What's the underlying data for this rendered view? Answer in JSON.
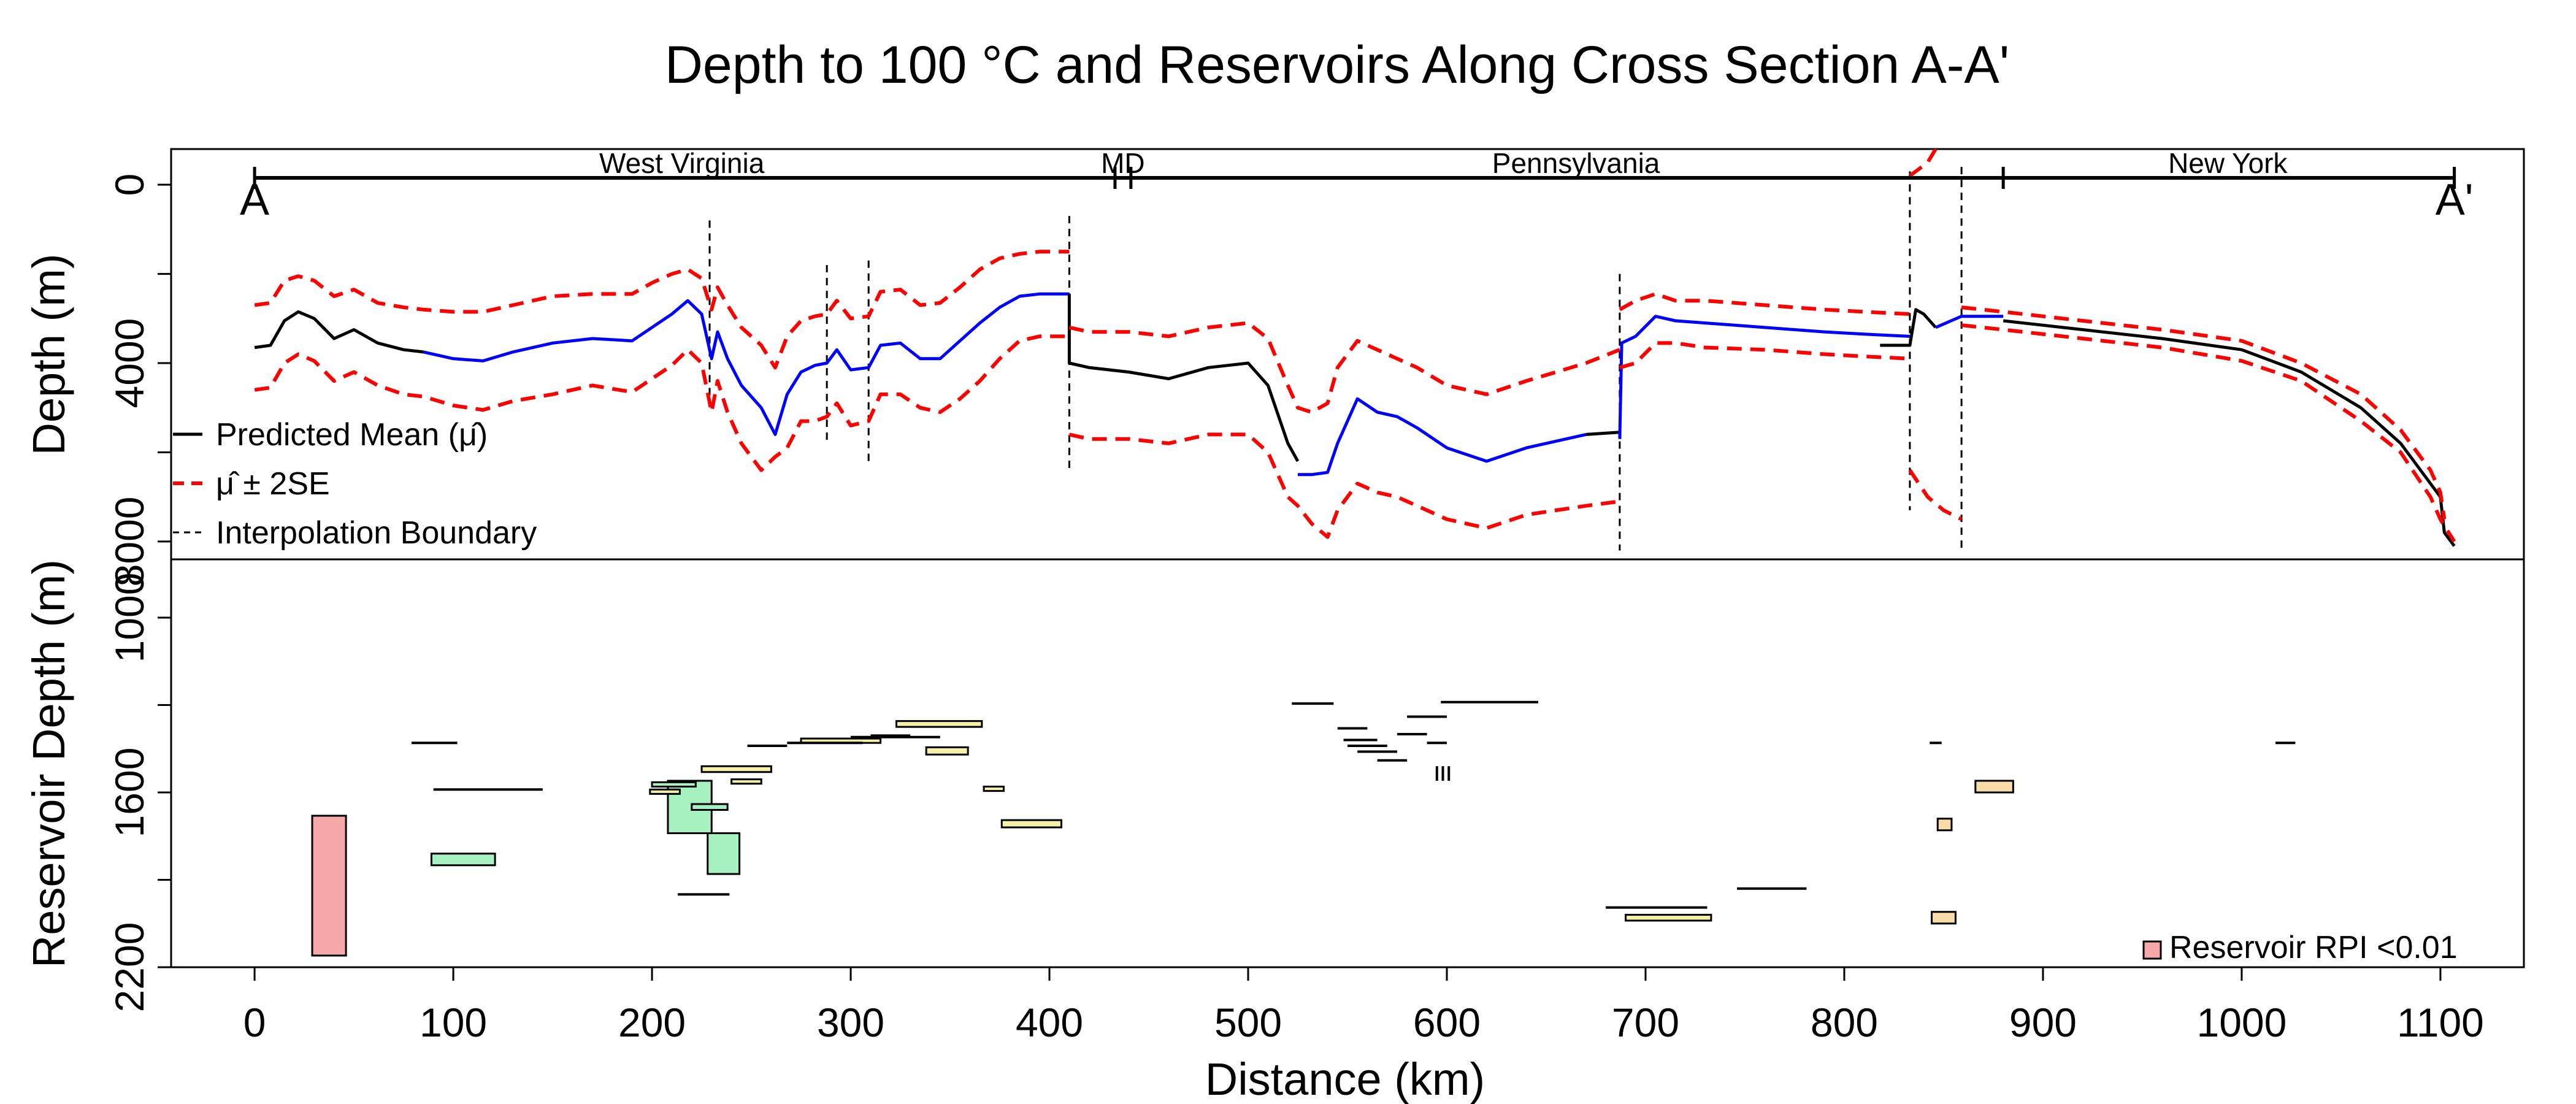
{
  "title": "Depth to 100 °C and Reservoirs Along Cross Section A-A'",
  "xlabel": "Distance (km)",
  "colors": {
    "mean_black": "#000000",
    "mean_blue": "#0000ff",
    "se_red": "#ff0000",
    "rpi_lt_001": "#f7a8a8",
    "rpi_green": "#a7f0c0",
    "rpi_yellow": "#f4f0a8",
    "rpi_orange": "#f8dca8"
  },
  "top_panel": {
    "ylabel": "Depth (m)",
    "y_ticks": [
      "0",
      "4000",
      "8000"
    ],
    "states": [
      "West Virginia",
      "MD",
      "Pennsylvania",
      "New York"
    ],
    "endpoints": [
      "A",
      "A'"
    ],
    "legend": [
      "Predicted Mean (μ̂)",
      "μ̂ ± 2SE",
      "Interpolation Boundary"
    ]
  },
  "bottom_panel": {
    "ylabel": "Reservoir Depth (m)",
    "y_ticks": [
      "1000",
      "1600",
      "2200"
    ],
    "legend": [
      "Reservoir RPI <0.01"
    ]
  },
  "x_ticks": [
    "0",
    "100",
    "200",
    "300",
    "400",
    "500",
    "600",
    "700",
    "800",
    "900",
    "1000",
    "1100"
  ],
  "chart_data": [
    {
      "type": "line",
      "title": "Depth to 100 °C and Reservoirs Along Cross Section A-A'",
      "xlabel": "Distance (km)",
      "ylabel": "Depth (m)",
      "xlim": [
        -42,
        1142
      ],
      "ylim": [
        8400,
        -800
      ],
      "y_reversed": true,
      "states": [
        {
          "name": "West Virginia",
          "x_start": 0,
          "x_end": 437
        },
        {
          "name": "MD",
          "x_start": 433,
          "x_end": 441
        },
        {
          "name": "Pennsylvania",
          "x_start": 437,
          "x_end": 880
        },
        {
          "name": "New York",
          "x_start": 880,
          "x_end": 1107
        }
      ],
      "interpolation_boundaries": [
        {
          "x": 229,
          "y1": 800,
          "y2": 4800
        },
        {
          "x": 288,
          "y1": 1800,
          "y2": 5800
        },
        {
          "x": 309,
          "y1": 1700,
          "y2": 6300
        },
        {
          "x": 410,
          "y1": 700,
          "y2": 6400
        },
        {
          "x": 687,
          "y1": 2000,
          "y2": 8200
        },
        {
          "x": 833,
          "y1": -300,
          "y2": 7300
        },
        {
          "x": 859,
          "y1": -400,
          "y2": 8200
        }
      ],
      "series": [
        {
          "name": "Predicted Mean (μ̂)",
          "color": "#000000",
          "x": [
            0,
            8,
            15,
            22,
            30,
            40,
            50,
            62,
            75,
            85
          ],
          "y": [
            3650,
            3600,
            3050,
            2850,
            3000,
            3450,
            3250,
            3550,
            3700,
            3750
          ]
        },
        {
          "name": "Predicted Mean (μ̂)",
          "color": "#0000ff",
          "x": [
            85,
            100,
            115,
            130,
            150,
            170,
            190,
            200,
            210,
            218,
            225,
            230,
            233,
            238,
            245,
            255,
            262,
            268,
            275,
            282,
            288,
            293,
            300,
            309,
            315,
            325,
            335,
            345,
            355,
            365,
            375,
            385,
            395,
            410
          ],
          "y": [
            3750,
            3900,
            3950,
            3750,
            3550,
            3450,
            3500,
            3200,
            2900,
            2600,
            2900,
            3900,
            3300,
            3900,
            4500,
            5000,
            5600,
            4700,
            4200,
            4050,
            4000,
            3700,
            4150,
            4100,
            3600,
            3550,
            3900,
            3900,
            3500,
            3100,
            2750,
            2500,
            2450,
            2450
          ]
        },
        {
          "name": "Predicted Mean (μ̂)",
          "color": "#000000",
          "x": [
            410,
            410,
            420,
            440,
            460,
            480,
            500,
            510,
            520,
            525
          ],
          "y": [
            2450,
            4000,
            4100,
            4200,
            4350,
            4100,
            4000,
            4500,
            5800,
            6200
          ]
        },
        {
          "name": "Predicted Mean (μ̂)",
          "color": "#0000ff",
          "x": [
            525,
            532,
            540,
            545,
            555,
            565,
            575,
            585,
            600,
            620,
            640,
            655,
            670
          ],
          "y": [
            6500,
            6500,
            6450,
            5800,
            4800,
            5100,
            5200,
            5450,
            5900,
            6200,
            5900,
            5750,
            5600
          ]
        },
        {
          "name": "Predicted Mean (μ̂)",
          "color": "#000000",
          "x": [
            670,
            687
          ],
          "y": [
            5600,
            5550
          ]
        },
        {
          "name": "Predicted Mean (μ̂)",
          "color": "#0000ff",
          "x": [
            687,
            688,
            695,
            705,
            715,
            730,
            760,
            790,
            810,
            833
          ],
          "y": [
            5700,
            3550,
            3400,
            2950,
            3050,
            3100,
            3200,
            3300,
            3350,
            3400
          ]
        },
        {
          "name": "Predicted Mean (μ̂)",
          "color": "#000000",
          "x": [
            818,
            833,
            836,
            840,
            846
          ],
          "y": [
            3600,
            3600,
            2800,
            2900,
            3200
          ]
        },
        {
          "name": "Predicted Mean (μ̂)",
          "color": "#0000ff",
          "x": [
            846,
            859,
            880
          ],
          "y": [
            3200,
            2950,
            2950
          ]
        },
        {
          "name": "Predicted Mean (μ̂)",
          "color": "#000000",
          "x": [
            880,
            920,
            960,
            1000,
            1030,
            1060,
            1080,
            1095,
            1100,
            1102,
            1107
          ],
          "y": [
            3050,
            3250,
            3450,
            3700,
            4200,
            5000,
            5800,
            6700,
            7000,
            7800,
            8100
          ]
        },
        {
          "name": "μ̂ ± 2SE",
          "color": "#ff0000",
          "x": [
            0,
            8,
            15,
            22,
            30,
            40,
            50,
            62,
            75,
            85,
            100,
            115,
            130,
            150,
            170,
            190,
            200,
            210,
            218,
            225,
            230,
            233,
            238,
            245,
            255,
            262,
            268,
            275,
            282,
            288,
            293,
            300,
            309,
            315,
            325,
            335,
            345,
            355,
            365,
            375,
            385,
            395,
            410
          ],
          "y": [
            2700,
            2650,
            2150,
            2050,
            2150,
            2500,
            2350,
            2650,
            2750,
            2800,
            2850,
            2850,
            2700,
            2500,
            2450,
            2450,
            2200,
            2000,
            1900,
            2100,
            2800,
            2300,
            2700,
            3200,
            3600,
            4100,
            3400,
            3050,
            2950,
            2900,
            2600,
            3000,
            2950,
            2400,
            2350,
            2700,
            2650,
            2300,
            1900,
            1650,
            1550,
            1500,
            1500
          ]
        },
        {
          "name": "μ̂ ± 2SE",
          "color": "#ff0000",
          "x": [
            0,
            8,
            15,
            22,
            30,
            40,
            50,
            62,
            75,
            85,
            100,
            115,
            130,
            150,
            170,
            190,
            200,
            210,
            218,
            225,
            230,
            233,
            238,
            245,
            255,
            262,
            268,
            275,
            282,
            288,
            293,
            300,
            309,
            315,
            325,
            335,
            345,
            355,
            365,
            375,
            385,
            395,
            410
          ],
          "y": [
            4600,
            4550,
            4000,
            3800,
            3950,
            4400,
            4200,
            4500,
            4700,
            4750,
            4950,
            5050,
            4850,
            4700,
            4500,
            4650,
            4350,
            4050,
            3700,
            4000,
            5100,
            4400,
            5100,
            5800,
            6400,
            6100,
            5900,
            5300,
            5300,
            5200,
            4900,
            5400,
            5300,
            4700,
            4700,
            5000,
            5100,
            4800,
            4400,
            3900,
            3500,
            3400,
            3400
          ]
        },
        {
          "name": "μ̂ ± 2SE",
          "color": "#ff0000",
          "x": [
            410,
            420,
            440,
            460,
            480,
            500,
            510,
            520,
            525,
            532,
            540,
            545,
            555,
            565,
            575,
            585,
            600,
            620,
            640,
            655,
            670,
            687
          ],
          "y": [
            3200,
            3300,
            3300,
            3400,
            3200,
            3100,
            3450,
            4500,
            5000,
            5100,
            4900,
            4100,
            3500,
            3700,
            3900,
            4100,
            4500,
            4700,
            4400,
            4200,
            4000,
            3700
          ]
        },
        {
          "name": "μ̂ ± 2SE",
          "color": "#ff0000",
          "x": [
            410,
            420,
            440,
            460,
            480,
            500,
            510,
            520,
            525,
            532,
            540,
            545,
            555,
            565,
            575,
            585,
            600,
            620,
            640,
            655,
            670,
            687
          ],
          "y": [
            5600,
            5700,
            5700,
            5800,
            5600,
            5600,
            6000,
            7000,
            7200,
            7600,
            7900,
            7300,
            6700,
            6900,
            7000,
            7200,
            7500,
            7700,
            7400,
            7300,
            7200,
            7100
          ]
        },
        {
          "name": "μ̂ ± 2SE",
          "color": "#ff0000",
          "x": [
            687,
            695,
            705,
            715,
            730,
            760,
            790,
            810,
            833
          ],
          "y": [
            2800,
            2600,
            2450,
            2600,
            2600,
            2700,
            2800,
            2850,
            2900
          ]
        },
        {
          "name": "μ̂ ± 2SE",
          "color": "#ff0000",
          "x": [
            687,
            695,
            705,
            715,
            730,
            760,
            790,
            810,
            833
          ],
          "y": [
            4100,
            4000,
            3550,
            3550,
            3650,
            3700,
            3800,
            3850,
            3900
          ]
        },
        {
          "name": "μ̂ ± 2SE",
          "color": "#ff0000",
          "x": [
            833,
            836,
            842,
            846
          ],
          "y": [
            -200,
            -300,
            -500,
            -800
          ]
        },
        {
          "name": "μ̂ ± 2SE",
          "color": "#ff0000",
          "x": [
            833,
            836,
            842,
            850,
            859
          ],
          "y": [
            6400,
            6600,
            7000,
            7300,
            7500
          ]
        },
        {
          "name": "μ̂ ± 2SE",
          "color": "#ff0000",
          "x": [
            859,
            880,
            920,
            960,
            1000,
            1030,
            1060,
            1080,
            1095,
            1100,
            1102
          ],
          "y": [
            2750,
            2850,
            3050,
            3250,
            3500,
            4000,
            4700,
            5500,
            6400,
            6900,
            7500
          ]
        },
        {
          "name": "μ̂ ± 2SE",
          "color": "#ff0000",
          "x": [
            859,
            880,
            920,
            960,
            1000,
            1030,
            1060,
            1080,
            1095,
            1100,
            1107
          ],
          "y": [
            3150,
            3250,
            3450,
            3650,
            3950,
            4400,
            5300,
            6000,
            7000,
            7500,
            8000
          ]
        }
      ]
    },
    {
      "type": "bar",
      "subtype": "reservoir_rectangles",
      "xlabel": "Distance (km)",
      "ylabel": "Reservoir Depth (m)",
      "xlim": [
        -42,
        1142
      ],
      "ylim": [
        2200,
        800
      ],
      "y_reversed": true,
      "rectangles": [
        {
          "x1": 29,
          "x2": 46,
          "y1": 1680,
          "y2": 2160,
          "rpi": "<0.01"
        },
        {
          "x1": 89,
          "x2": 121,
          "y1": 1810,
          "y2": 1850,
          "rpi": "green"
        },
        {
          "x1": 208,
          "x2": 230,
          "y1": 1560,
          "y2": 1740,
          "rpi": "green"
        },
        {
          "x1": 228,
          "x2": 244,
          "y1": 1740,
          "y2": 1880,
          "rpi": "green"
        },
        {
          "x1": 200,
          "x2": 222,
          "y1": 1565,
          "y2": 1580,
          "rpi": "green"
        },
        {
          "x1": 220,
          "x2": 238,
          "y1": 1640,
          "y2": 1660,
          "rpi": "green"
        },
        {
          "x1": 199,
          "x2": 214,
          "y1": 1590,
          "y2": 1605,
          "rpi": "yellow"
        },
        {
          "x1": 225,
          "x2": 260,
          "y1": 1510,
          "y2": 1530,
          "rpi": "yellow"
        },
        {
          "x1": 240,
          "x2": 255,
          "y1": 1555,
          "y2": 1570,
          "rpi": "yellow"
        },
        {
          "x1": 275,
          "x2": 315,
          "y1": 1415,
          "y2": 1430,
          "rpi": "yellow"
        },
        {
          "x1": 323,
          "x2": 366,
          "y1": 1355,
          "y2": 1375,
          "rpi": "yellow"
        },
        {
          "x1": 338,
          "x2": 359,
          "y1": 1445,
          "y2": 1470,
          "rpi": "yellow"
        },
        {
          "x1": 367,
          "x2": 377,
          "y1": 1580,
          "y2": 1595,
          "rpi": "yellow"
        },
        {
          "x1": 376,
          "x2": 406,
          "y1": 1695,
          "y2": 1720,
          "rpi": "yellow"
        },
        {
          "x1": 690,
          "x2": 733,
          "y1": 2020,
          "y2": 2040,
          "rpi": "yellow"
        },
        {
          "x1": 844,
          "x2": 856,
          "y1": 2010,
          "y2": 2050,
          "rpi": "orange"
        },
        {
          "x1": 847,
          "x2": 854,
          "y1": 1690,
          "y2": 1730,
          "rpi": "orange"
        },
        {
          "x1": 866,
          "x2": 885,
          "y1": 1560,
          "y2": 1600,
          "rpi": "orange"
        }
      ],
      "segments": [
        {
          "x1": 79,
          "x2": 102,
          "y": 1430
        },
        {
          "x1": 90,
          "x2": 145,
          "y": 1590
        },
        {
          "x1": 213,
          "x2": 239,
          "y": 1950
        },
        {
          "x1": 248,
          "x2": 268,
          "y": 1440
        },
        {
          "x1": 268,
          "x2": 306,
          "y": 1430
        },
        {
          "x1": 300,
          "x2": 345,
          "y": 1410
        },
        {
          "x1": 310,
          "x2": 330,
          "y": 1405
        },
        {
          "x1": 522,
          "x2": 543,
          "y": 1295
        },
        {
          "x1": 545,
          "x2": 560,
          "y": 1380
        },
        {
          "x1": 548,
          "x2": 565,
          "y": 1420
        },
        {
          "x1": 550,
          "x2": 570,
          "y": 1440
        },
        {
          "x1": 555,
          "x2": 575,
          "y": 1460
        },
        {
          "x1": 565,
          "x2": 580,
          "y": 1490
        },
        {
          "x1": 575,
          "x2": 590,
          "y": 1400
        },
        {
          "x1": 580,
          "x2": 600,
          "y": 1340
        },
        {
          "x1": 590,
          "x2": 600,
          "y": 1430
        },
        {
          "x1": 597,
          "x2": 646,
          "y": 1290
        },
        {
          "x1": 680,
          "x2": 731,
          "y": 1995
        },
        {
          "x1": 746,
          "x2": 781,
          "y": 1930
        },
        {
          "x1": 1017,
          "x2": 1027,
          "y": 1430
        },
        {
          "x1": 843,
          "x2": 849,
          "y": 1430
        }
      ],
      "ticks": [
        {
          "x": 595,
          "y1": 1510,
          "y2": 1560
        },
        {
          "x": 598,
          "y1": 1510,
          "y2": 1560
        },
        {
          "x": 601,
          "y1": 1510,
          "y2": 1560
        }
      ]
    }
  ]
}
